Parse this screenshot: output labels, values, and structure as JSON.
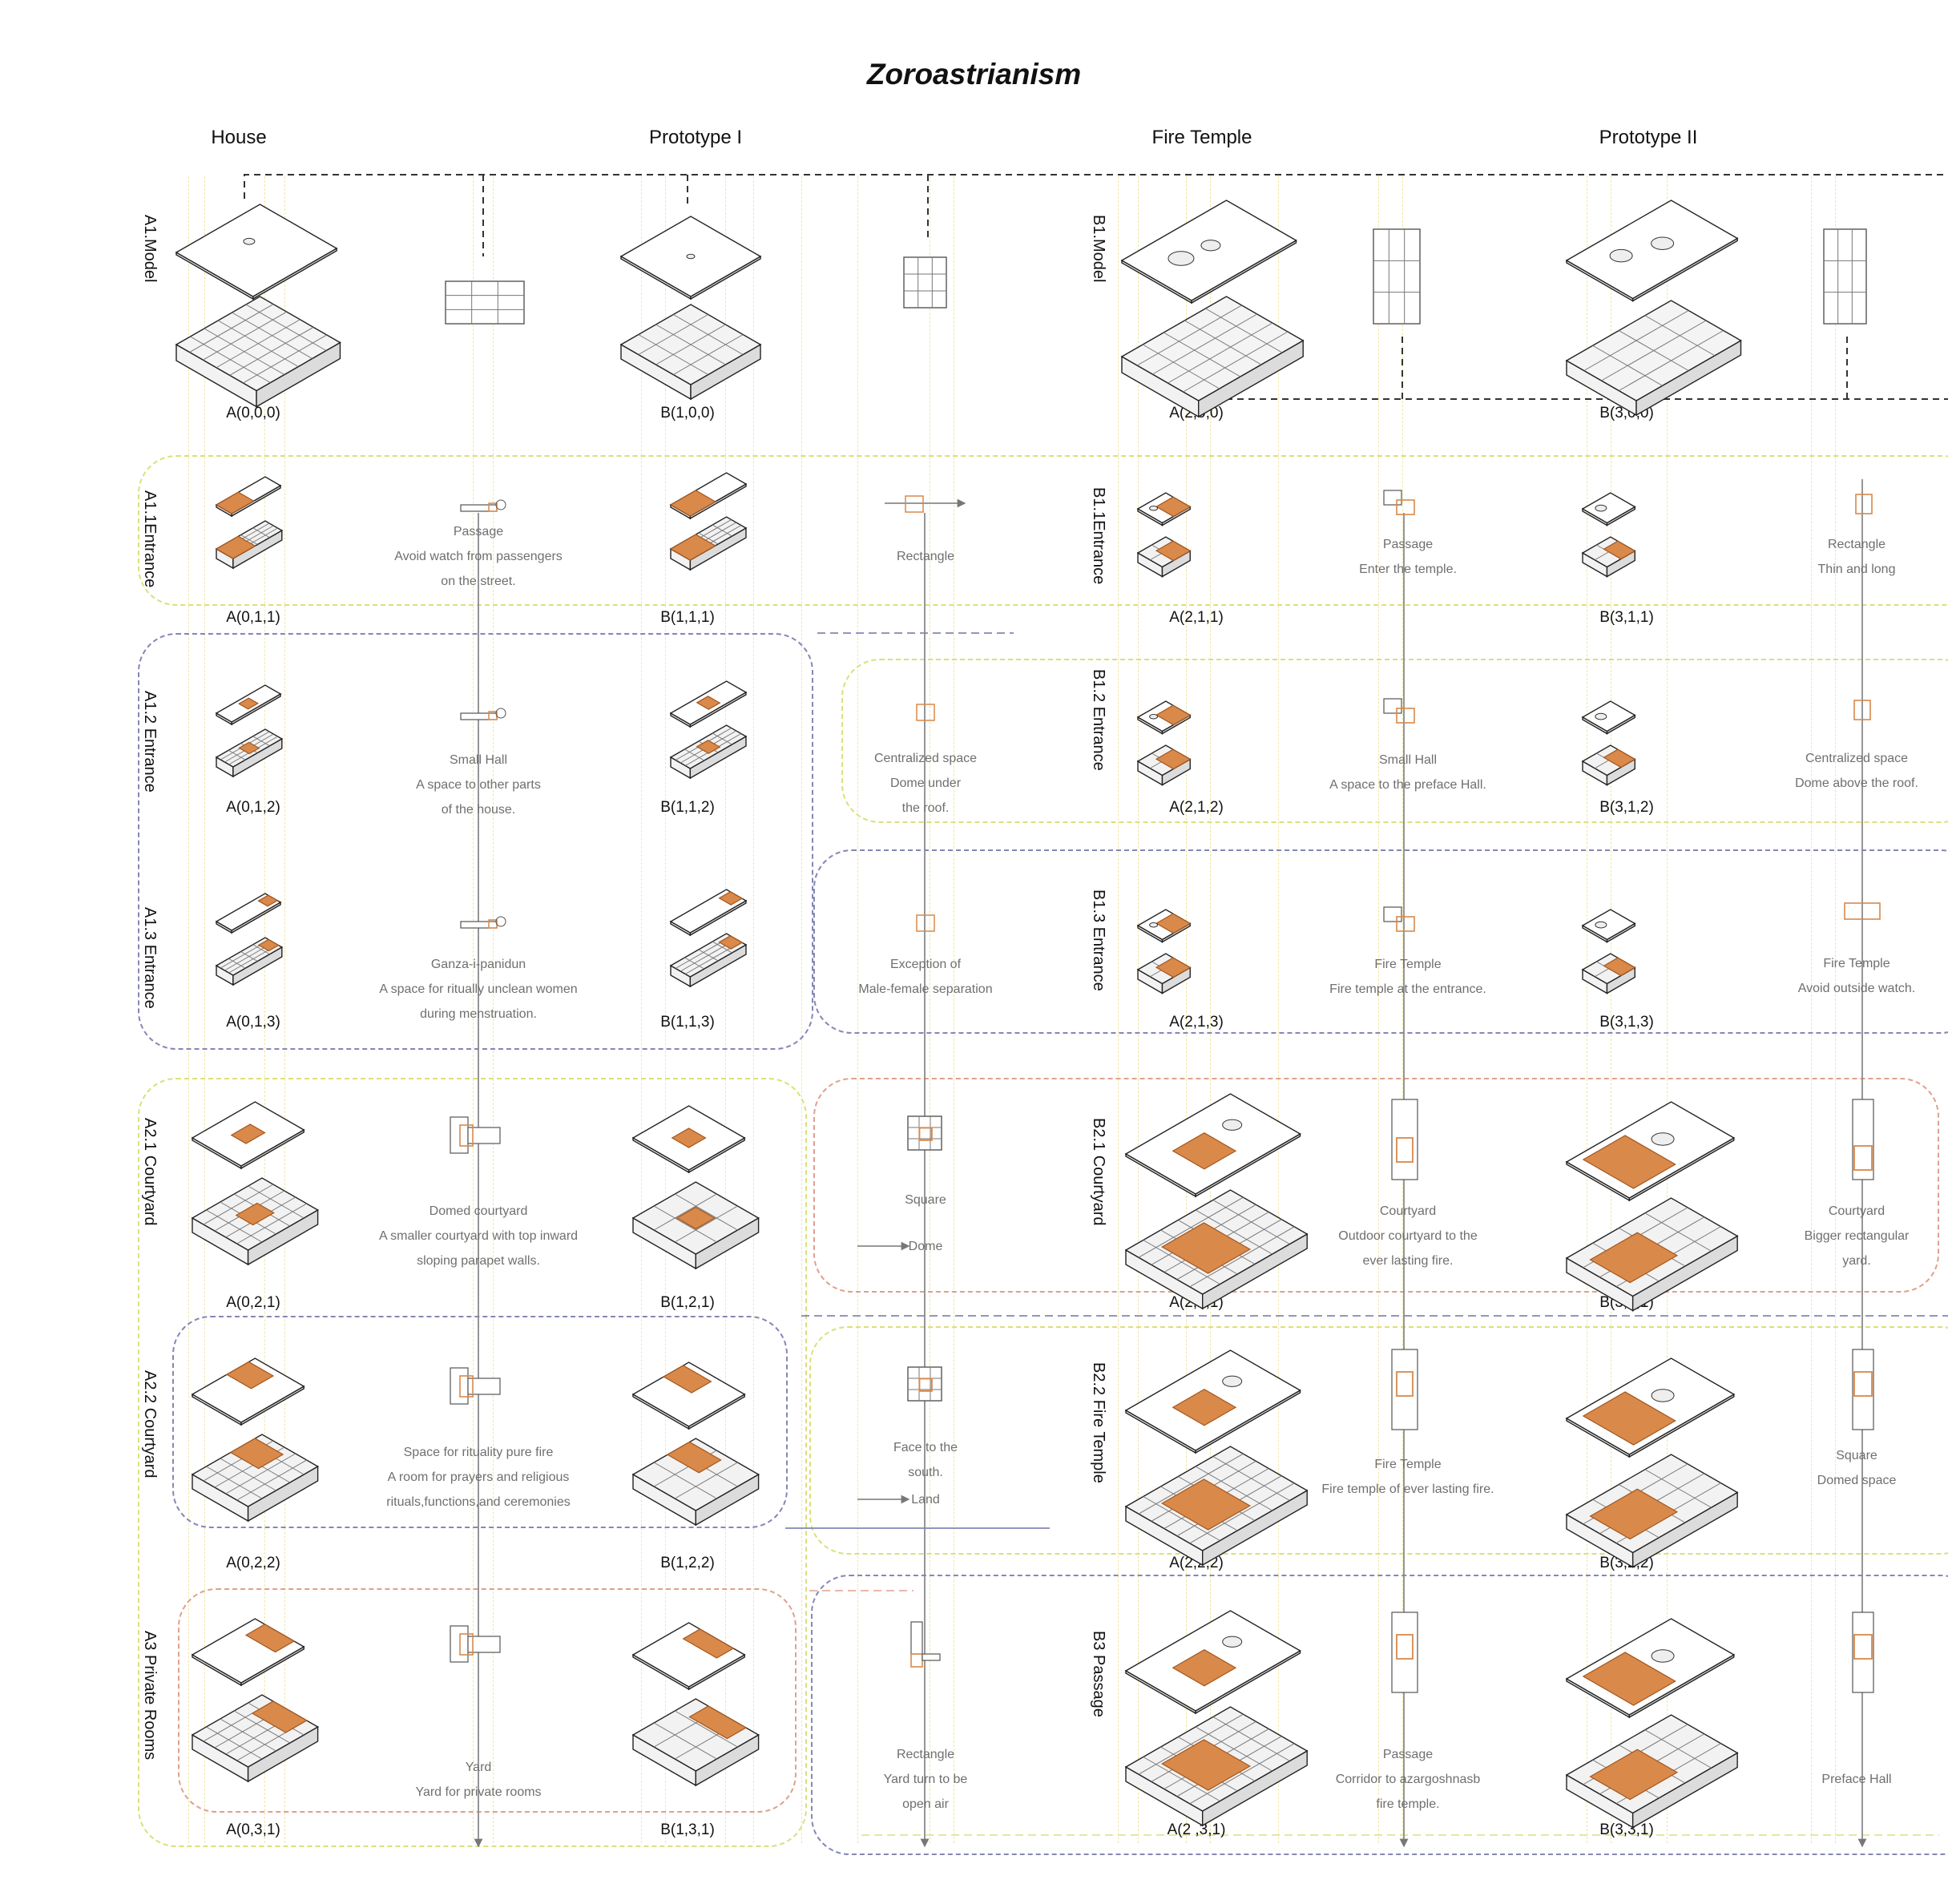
{
  "title": "Zoroastrianism",
  "columns": [
    "House",
    "Prototype I",
    "Fire Temple",
    "Prototype II"
  ],
  "rows": {
    "a1": {
      "label": "A1.Model",
      "code_house": "A(0,0,0)",
      "code_proto": "B(1,0,0)"
    },
    "b1": {
      "label": "B1.Model",
      "code_temple": "A(2,0,0)",
      "code_proto": "B(3,0,0)"
    },
    "a11": {
      "label": "A1.1Entrance",
      "code_house": "A(0,1,1)",
      "code_proto": "B(1,1,1)",
      "cap1": [
        "Passage",
        "Avoid watch from passengers",
        "on the street."
      ],
      "cap2": [
        "Rectangle"
      ]
    },
    "b11": {
      "label": "B1.1Entrance",
      "code_temple": "A(2,1,1)",
      "code_proto": "B(3,1,1)",
      "cap1": [
        "Passage",
        "Enter the temple."
      ],
      "cap2": [
        "Rectangle",
        "Thin and long"
      ]
    },
    "a12": {
      "label": "A1.2 Entrance",
      "code_house": "A(0,1,2)",
      "code_proto": "B(1,1,2)",
      "cap1": [
        "Small Hall",
        "A space to other parts",
        "of the house."
      ],
      "cap2": [
        "Centralized space",
        "Dome under",
        "the roof."
      ]
    },
    "b12": {
      "label": "B1.2 Entrance",
      "code_temple": "A(2,1,2)",
      "code_proto": "B(3,1,2)",
      "cap1": [
        "Small Hall",
        "A space to the preface Hall."
      ],
      "cap2": [
        "Centralized space",
        "Dome above the roof."
      ]
    },
    "a13": {
      "label": "A1.3 Entrance",
      "code_house": "A(0,1,3)",
      "code_proto": "B(1,1,3)",
      "cap1": [
        "Ganza-i-panidun",
        "A space for ritually unclean women",
        "during menstruation."
      ],
      "cap2": [
        "Exception of",
        "Male-female separation"
      ]
    },
    "b13": {
      "label": "B1.3 Entrance",
      "code_temple": "A(2,1,3)",
      "code_proto": "B(3,1,3)",
      "cap1": [
        "Fire Temple",
        "Fire temple at the entrance."
      ],
      "cap2": [
        "Fire Temple",
        "Avoid outside watch."
      ]
    },
    "a21": {
      "label": "A2.1 Courtyard",
      "code_house": "A(0,2,1)",
      "code_proto": "B(1,2,1)",
      "cap1": [
        "Domed courtyard",
        "A smaller courtyard with top inward",
        "sloping parapet walls."
      ],
      "cap2": [
        "Square"
      ],
      "cap3": "Dome"
    },
    "b21": {
      "label": "B2.1 Courtyard",
      "code_temple": "A(2,2,1)",
      "code_proto": "B(3,2,1)",
      "cap1": [
        "Courtyard",
        "Outdoor courtyard to the",
        "ever lasting fire."
      ],
      "cap2": [
        "Courtyard",
        "Bigger rectangular",
        "yard."
      ]
    },
    "a22": {
      "label": "A2.2 Courtyard",
      "code_house": "A(0,2,2)",
      "code_proto": "B(1,2,2)",
      "cap1": [
        "Space for rituality pure fire",
        "A room for prayers and religious",
        "rituals,functions,and ceremonies"
      ],
      "cap2": [
        "Face to the",
        "south."
      ],
      "cap3": "Land"
    },
    "b22": {
      "label": "B2.2 Fire Temple",
      "code_temple": "A(2,2,2)",
      "code_proto": "B(3,2,2)",
      "cap1": [
        "Fire Temple",
        "Fire temple of ever lasting fire."
      ],
      "cap2": [
        "Square",
        "Domed space"
      ]
    },
    "a3": {
      "label": "A3 Private Rooms",
      "code_house": "A(0,3,1)",
      "code_proto": "B(1,3,1)",
      "cap1": [
        "Yard",
        "Yard for private rooms"
      ],
      "cap2": [
        "Rectangle",
        "Yard turn to be",
        "open air"
      ]
    },
    "b3": {
      "label": "B3 Passage",
      "code_temple": "A(2 ,3,1)",
      "code_proto": "B(3,3,1)",
      "cap1": [
        "Passage",
        "Corridor to azargoshnasb",
        "fire temple."
      ],
      "cap2": [
        "Preface Hall"
      ]
    }
  },
  "colors": {
    "highlight": "#d9894a",
    "highlight_light": "#f3c9a1",
    "blue_dash": "#6f72a8",
    "yellow_dash": "#dbe07a",
    "red_dash": "#e0a08c"
  }
}
